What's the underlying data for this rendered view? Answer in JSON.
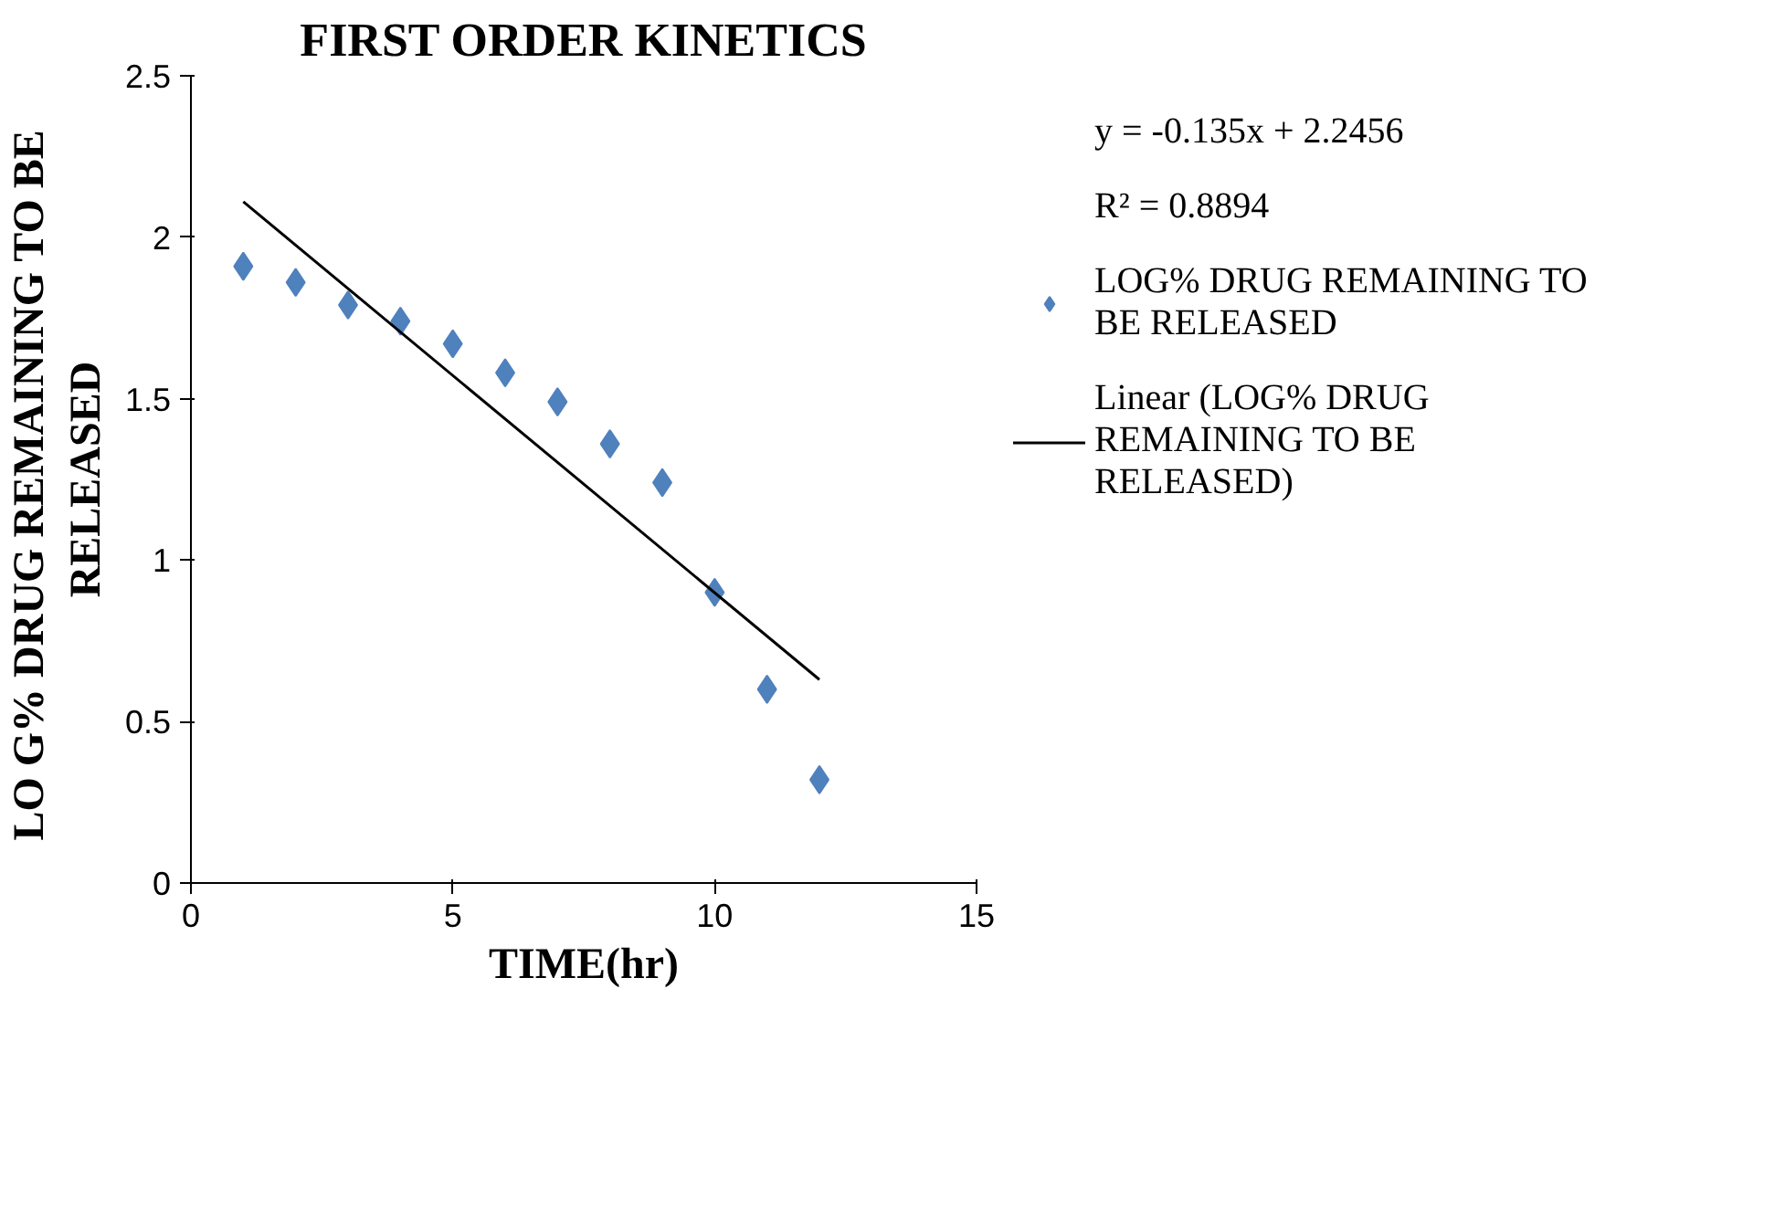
{
  "chart_data": {
    "type": "scatter",
    "title": "FIRST ORDER KINETICS",
    "xlabel": "TIME(hr)",
    "ylabel": "LO G% DRUG  REMAINING TO BE RELEASED",
    "x": [
      1,
      2,
      3,
      4,
      5,
      6,
      7,
      8,
      9,
      10,
      11,
      12
    ],
    "series": [
      {
        "name": "LOG% DRUG REMAINING TO BE RELEASED",
        "color": "#4f81bd",
        "values": [
          1.91,
          1.86,
          1.79,
          1.74,
          1.67,
          1.58,
          1.49,
          1.36,
          1.24,
          0.9,
          0.6,
          0.32
        ],
        "marker": "diamond"
      },
      {
        "name": "Linear (LOG% DRUG REMAINING TO BE RELEASED)",
        "type": "line",
        "color": "#000000",
        "x": [
          1,
          12
        ],
        "values": [
          2.11,
          0.63
        ]
      }
    ],
    "annotations": [
      "y = -0.135x + 2.2456",
      "R² = 0.8894"
    ],
    "xlim": [
      0,
      15
    ],
    "xticks": [
      0,
      5,
      10,
      15
    ],
    "ylim": [
      0,
      2.5
    ],
    "yticks": [
      0,
      0.5,
      1,
      1.5,
      2,
      2.5
    ],
    "grid": false,
    "legend": "right"
  }
}
